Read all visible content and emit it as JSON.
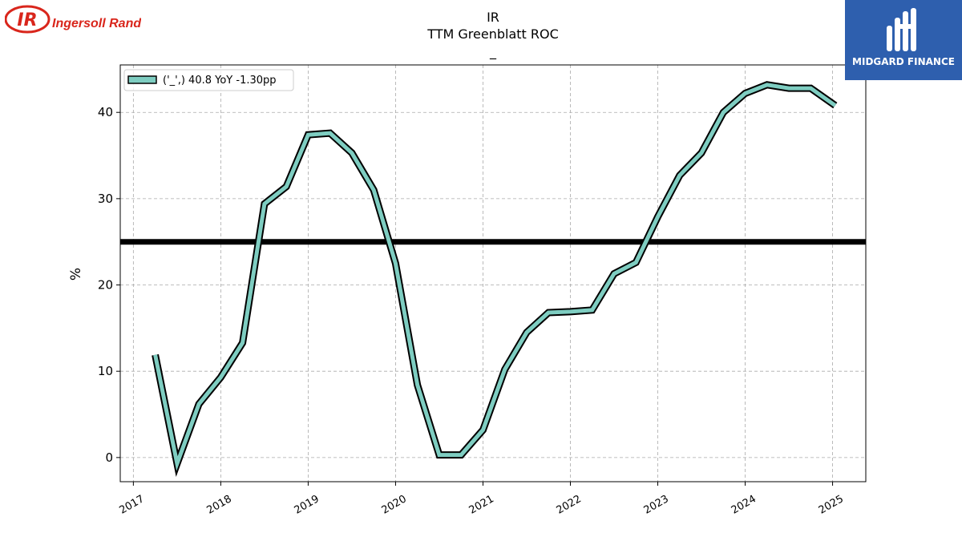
{
  "header": {
    "ticker": "IR",
    "title": "TTM Greenblatt ROC",
    "subtitle": "_"
  },
  "logos": {
    "company_name": "Ingersoll Rand",
    "company_mark": "IR",
    "publisher_name": "MIDGARD FINANCE"
  },
  "colors": {
    "line_fill": "#7ecdc1",
    "line_outline": "#000000",
    "threshold": "#000000",
    "company_red": "#d9261c",
    "publisher_blue": "#2e5fae"
  },
  "chart_data": {
    "type": "line",
    "title": "TTM Greenblatt ROC",
    "ylabel": "%",
    "xlabel": "",
    "xlim": [
      2016.85,
      2025.38
    ],
    "ylim": [
      -2.8,
      45.5
    ],
    "yticks": [
      0,
      10,
      20,
      30,
      40
    ],
    "xticks": [
      2017,
      2018,
      2019,
      2020,
      2021,
      2022,
      2023,
      2024,
      2025
    ],
    "grid": true,
    "legend_position": "top-left",
    "reference_line": 25,
    "series": [
      {
        "name": "('_',) 40.8 YoY -1.30pp",
        "x": [
          2017.25,
          2017.5,
          2017.75,
          2018.0,
          2018.25,
          2018.5,
          2018.75,
          2019.0,
          2019.25,
          2019.5,
          2019.75,
          2020.0,
          2020.25,
          2020.5,
          2020.75,
          2021.0,
          2021.25,
          2021.5,
          2021.75,
          2022.0,
          2022.25,
          2022.5,
          2022.75,
          2023.0,
          2023.25,
          2023.5,
          2023.75,
          2024.0,
          2024.25,
          2024.5,
          2024.75,
          2025.03
        ],
        "values": [
          11.9,
          -0.7,
          6.2,
          9.3,
          13.3,
          29.4,
          31.4,
          37.4,
          37.6,
          35.3,
          31.0,
          22.5,
          8.4,
          0.3,
          0.3,
          3.2,
          10.2,
          14.5,
          16.8,
          16.9,
          17.1,
          21.3,
          22.6,
          27.9,
          32.7,
          35.3,
          40.0,
          42.2,
          43.2,
          42.8,
          42.8,
          40.8
        ]
      }
    ]
  }
}
